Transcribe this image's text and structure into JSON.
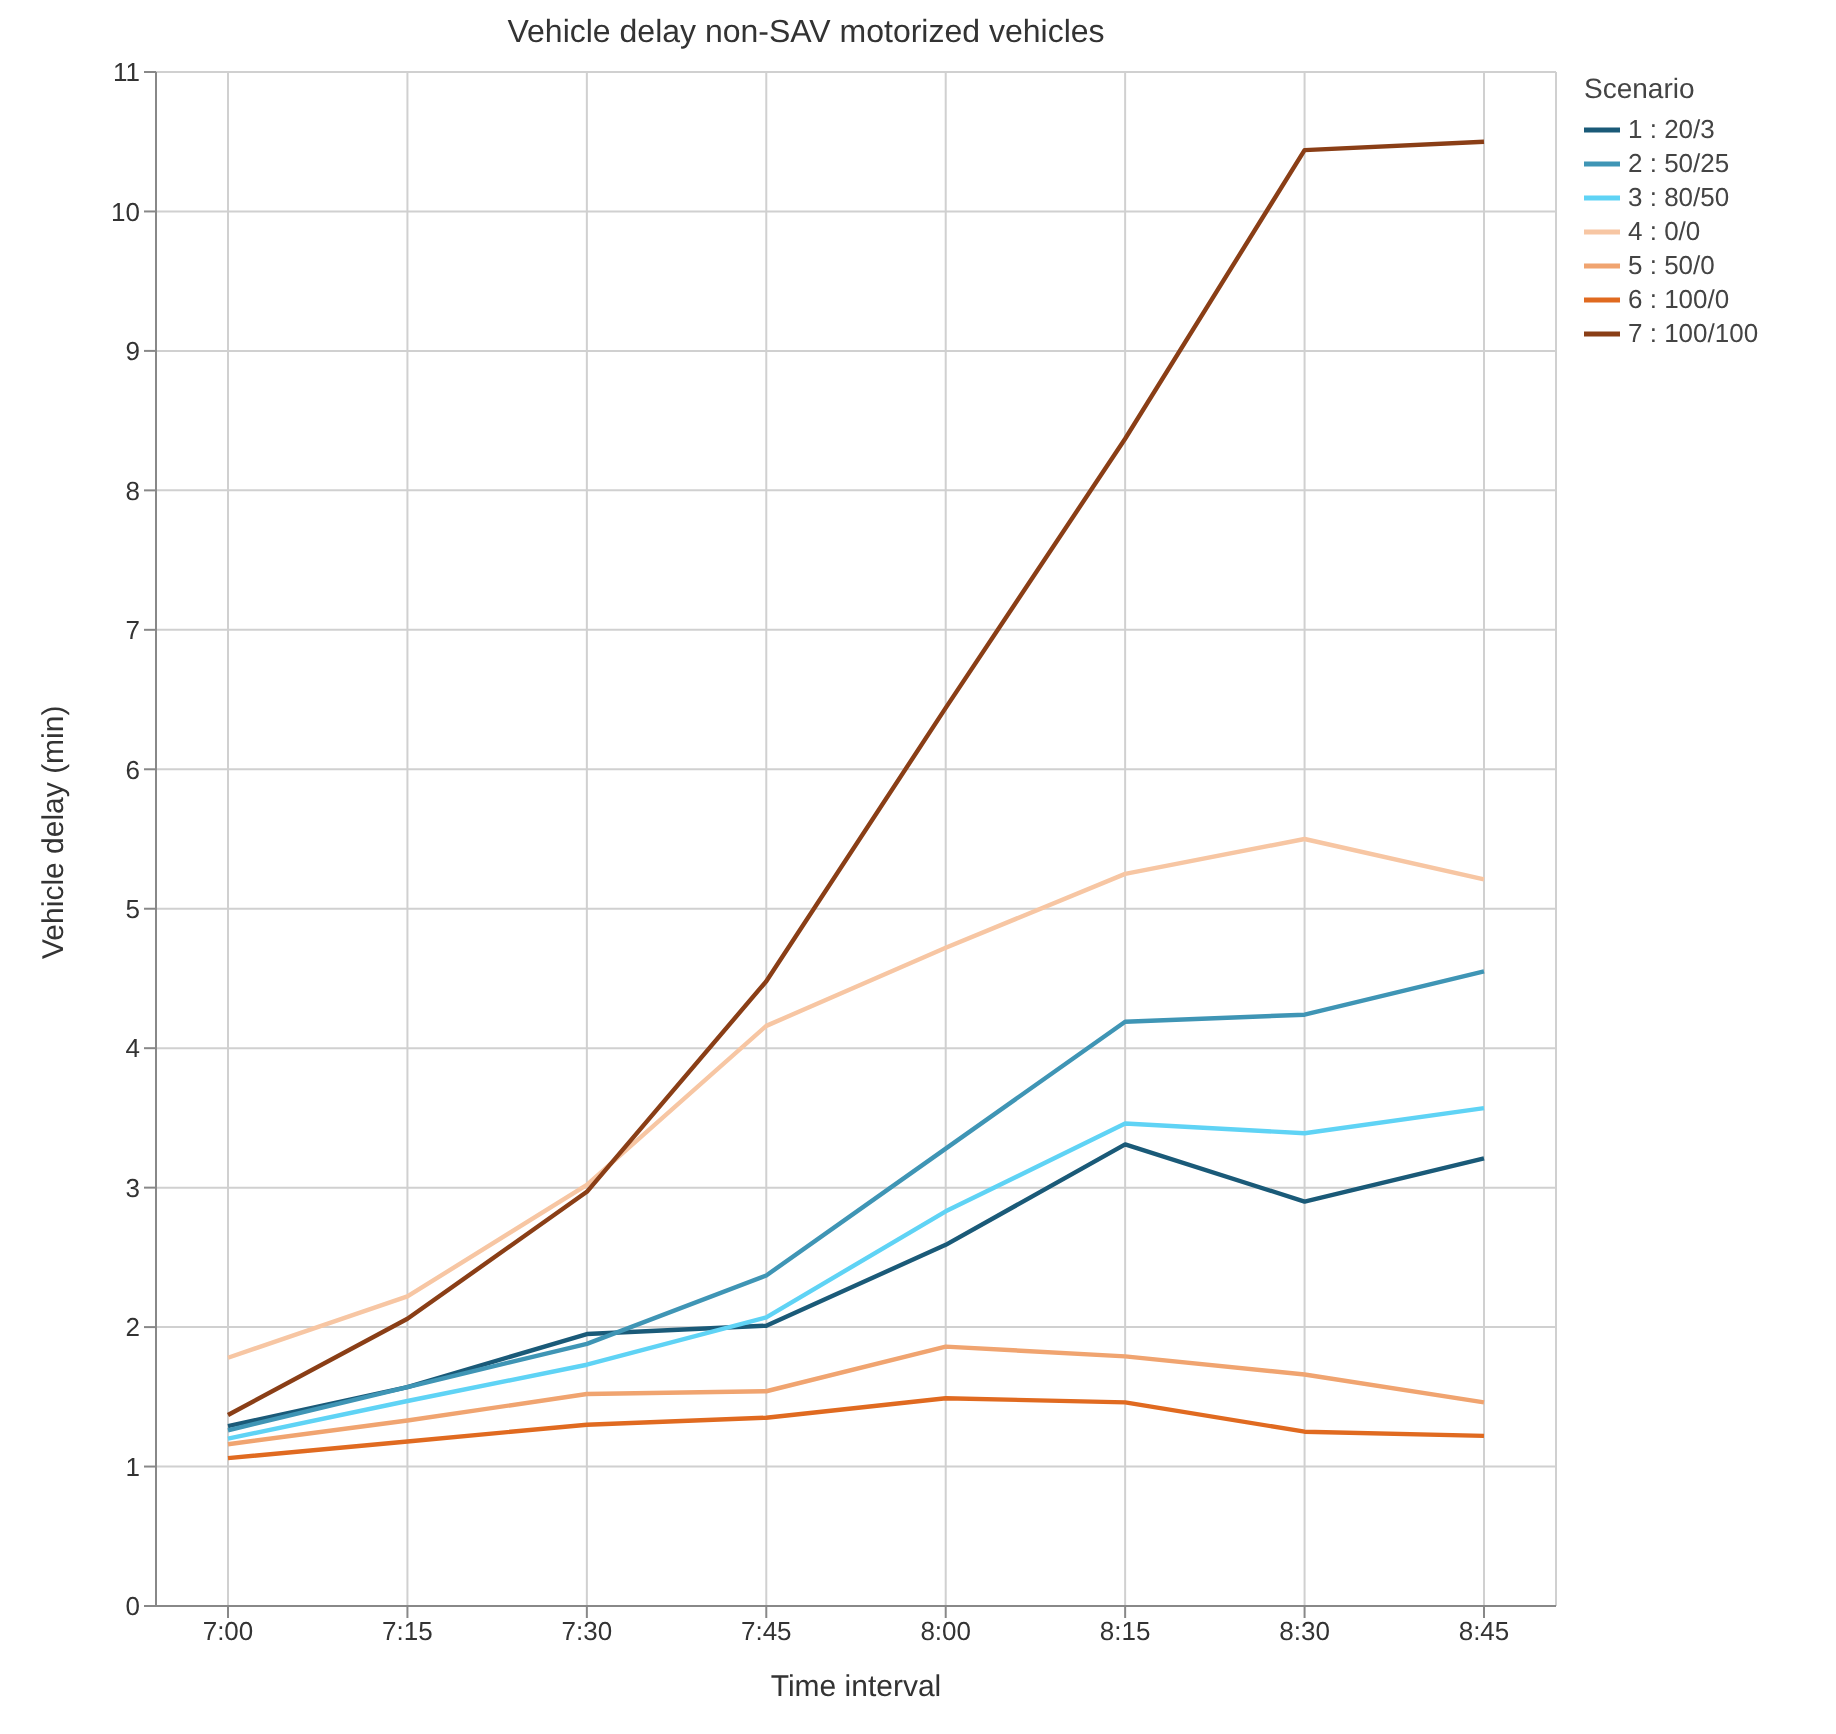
{
  "chart_data": {
    "type": "line",
    "title": "Vehicle delay non-SAV motorized vehicles",
    "xlabel": "Time interval",
    "ylabel": "Vehicle delay (min)",
    "legend_title": "Scenario",
    "categories": [
      "7:00",
      "7:15",
      "7:30",
      "7:45",
      "8:00",
      "8:15",
      "8:30",
      "8:45"
    ],
    "ylim": [
      0,
      11
    ],
    "yticks": [
      0,
      1,
      2,
      3,
      4,
      5,
      6,
      7,
      8,
      9,
      10,
      11
    ],
    "grid": true,
    "legend": "right",
    "marker": "none",
    "line_style": "solid",
    "series": [
      {
        "name": "1 : 20/3",
        "color": "#1a5a78",
        "values": [
          1.29,
          1.57,
          1.95,
          2.01,
          2.59,
          3.31,
          2.9,
          3.21
        ]
      },
      {
        "name": "2 : 50/25",
        "color": "#3f95b5",
        "values": [
          1.26,
          1.57,
          1.88,
          2.37,
          3.28,
          4.19,
          4.24,
          4.55
        ]
      },
      {
        "name": "3 : 80/50",
        "color": "#5fd3f5",
        "values": [
          1.2,
          1.47,
          1.73,
          2.07,
          2.83,
          3.46,
          3.39,
          3.57
        ]
      },
      {
        "name": "4 : 0/0",
        "color": "#f7c6a3",
        "values": [
          1.78,
          2.22,
          3.02,
          4.16,
          4.72,
          5.25,
          5.5,
          5.21
        ]
      },
      {
        "name": "5 : 50/0",
        "color": "#f0a470",
        "values": [
          1.16,
          1.33,
          1.52,
          1.54,
          1.86,
          1.79,
          1.66,
          1.46
        ]
      },
      {
        "name": "6 : 100/0",
        "color": "#e06a20",
        "values": [
          1.06,
          1.18,
          1.3,
          1.35,
          1.49,
          1.46,
          1.25,
          1.22
        ]
      },
      {
        "name": "7 : 100/100",
        "color": "#8a3e16",
        "values": [
          1.37,
          2.06,
          2.97,
          4.48,
          6.44,
          8.37,
          10.44,
          10.5
        ]
      }
    ]
  }
}
